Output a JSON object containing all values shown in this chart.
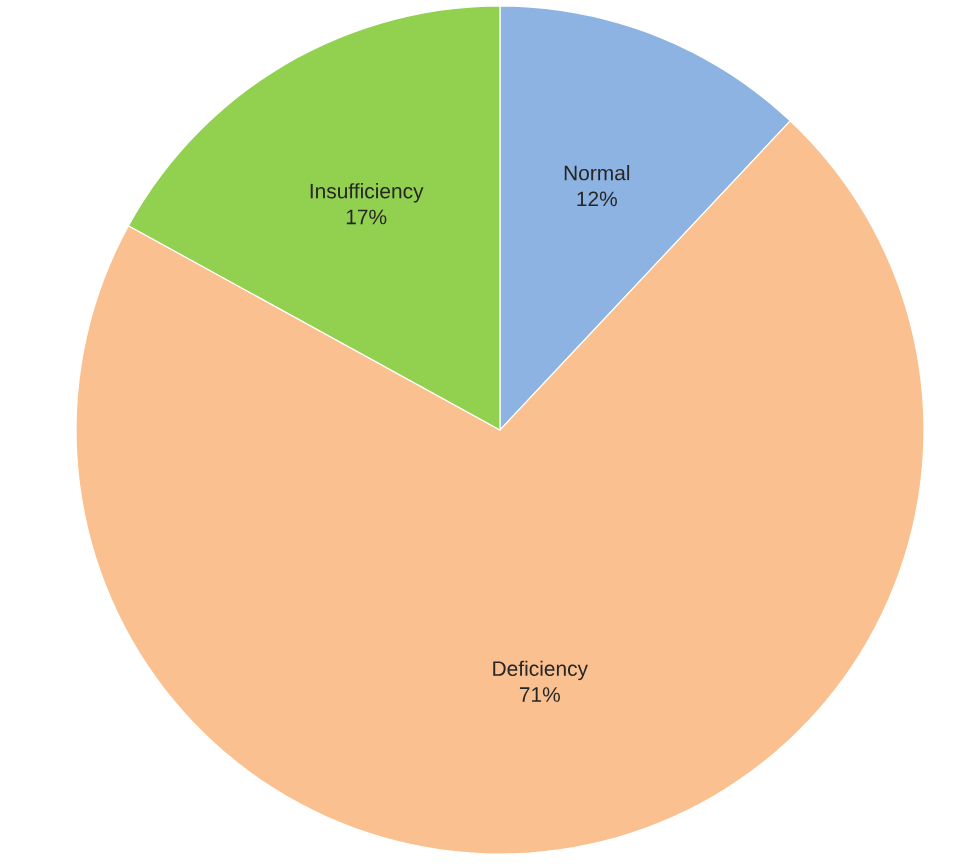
{
  "chart_data": {
    "type": "pie",
    "categories": [
      "Normal",
      "Deficiency",
      "Insufficiency"
    ],
    "values": [
      12,
      71,
      17
    ],
    "colors": [
      "#8db3e2",
      "#fac090",
      "#92d050"
    ],
    "value_labels": [
      "12%",
      "71%",
      "17%"
    ]
  }
}
